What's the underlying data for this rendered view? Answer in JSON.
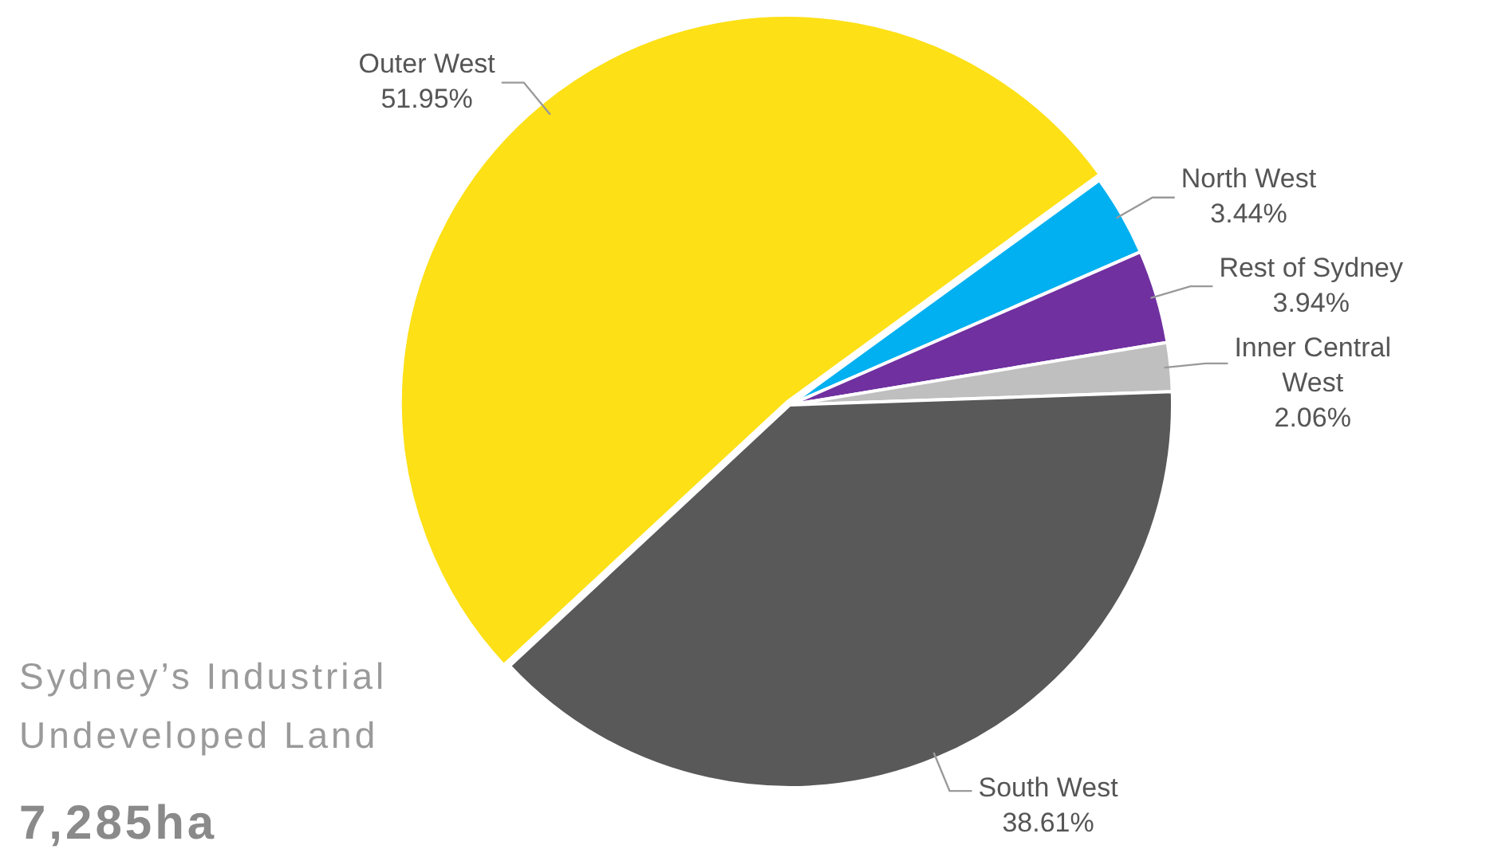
{
  "chart_data": {
    "type": "pie",
    "title": "Sydney’s Industrial Undeveloped Land",
    "annotations": [
      "7,285ha"
    ],
    "categories": [
      "Outer West",
      "North West",
      "Rest of Sydney",
      "Inner Central West",
      "South West"
    ],
    "values": [
      51.95,
      3.44,
      3.94,
      2.06,
      38.61
    ],
    "value_labels": [
      "51.95%",
      "3.44%",
      "3.94%",
      "2.06%",
      "38.61%"
    ],
    "colors": [
      "#fde016",
      "#00b0f0",
      "#7030a0",
      "#bfbfbf",
      "#595959"
    ],
    "legend": false
  }
}
